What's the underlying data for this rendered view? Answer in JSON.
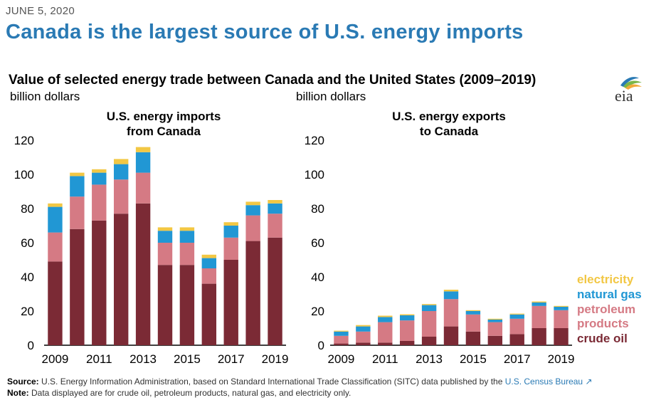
{
  "header": {
    "date": "JUNE 5, 2020",
    "headline": "Canada is the largest source of U.S. energy imports",
    "subtitle": "Value of selected energy trade between Canada and the United States (2009–2019)",
    "logo_text": "eia"
  },
  "colors": {
    "crude_oil": "#7b2a35",
    "petroleum_products": "#d57a84",
    "natural_gas": "#2197d4",
    "electricity": "#f2c744",
    "headline": "#2a7ab4"
  },
  "legend": [
    {
      "key": "electricity",
      "label": "electricity",
      "color": "#f2c744"
    },
    {
      "key": "natural_gas",
      "label": "natural gas",
      "color": "#2197d4"
    },
    {
      "key": "petroleum_products",
      "label": "petroleum products",
      "line1": "petroleum",
      "line2": "products",
      "color": "#d57a84"
    },
    {
      "key": "crude_oil",
      "label": "crude oil",
      "color": "#7b2a35"
    }
  ],
  "chart_data": [
    {
      "type": "bar",
      "stacked": true,
      "title_line1": "U.S. energy imports",
      "title_line2": "from Canada",
      "ylabel": "billion dollars",
      "ylim": [
        0,
        120
      ],
      "yticks": [
        0,
        20,
        40,
        60,
        80,
        100,
        120
      ],
      "categories": [
        "2009",
        "2010",
        "2011",
        "2012",
        "2013",
        "2014",
        "2015",
        "2016",
        "2017",
        "2018",
        "2019"
      ],
      "xtick_labels": [
        "2009",
        "2011",
        "2013",
        "2015",
        "2017",
        "2019"
      ],
      "series": [
        {
          "name": "crude oil",
          "key": "crude_oil",
          "values": [
            49,
            68,
            73,
            77,
            83,
            47,
            47,
            36,
            50,
            61,
            63
          ]
        },
        {
          "name": "petroleum products",
          "key": "petroleum_products",
          "values": [
            17,
            19,
            21,
            20,
            18,
            13,
            13,
            9,
            13,
            15,
            14
          ]
        },
        {
          "name": "natural gas",
          "key": "natural_gas",
          "values": [
            15,
            12,
            7,
            9,
            12,
            7,
            7,
            6,
            7,
            6,
            6
          ]
        },
        {
          "name": "electricity",
          "key": "electricity",
          "values": [
            2,
            2,
            2,
            3,
            3,
            2,
            2,
            2,
            2,
            2,
            2
          ]
        }
      ],
      "legend": "right"
    },
    {
      "type": "bar",
      "stacked": true,
      "title_line1": "U.S. energy exports",
      "title_line2": "to Canada",
      "ylabel": "billion dollars",
      "ylim": [
        0,
        120
      ],
      "yticks": [
        0,
        20,
        40,
        60,
        80,
        100,
        120
      ],
      "categories": [
        "2009",
        "2010",
        "2011",
        "2012",
        "2013",
        "2014",
        "2015",
        "2016",
        "2017",
        "2018",
        "2019"
      ],
      "xtick_labels": [
        "2009",
        "2011",
        "2013",
        "2015",
        "2017",
        "2019"
      ],
      "series": [
        {
          "name": "crude oil",
          "key": "crude_oil",
          "values": [
            1,
            1.5,
            1.5,
            2.5,
            5,
            11,
            8,
            5.5,
            6.5,
            10,
            10
          ]
        },
        {
          "name": "petroleum products",
          "key": "petroleum_products",
          "values": [
            4.5,
            6.5,
            12,
            12,
            15,
            16,
            10,
            8,
            9,
            13,
            10.5
          ]
        },
        {
          "name": "natural gas",
          "key": "natural_gas",
          "values": [
            2.5,
            3,
            3,
            3,
            3.5,
            4.5,
            2,
            1.5,
            2.5,
            2,
            2
          ]
        },
        {
          "name": "electricity",
          "key": "electricity",
          "values": [
            0.5,
            0.8,
            0.8,
            0.6,
            0.6,
            1.0,
            0.5,
            0.5,
            0.5,
            0.6,
            0.5
          ]
        }
      ],
      "legend": "right"
    }
  ],
  "footer": {
    "source_label": "Source:",
    "source_text": " U.S. Energy Information Administration, based on Standard International Trade Classification (SITC) data published by the ",
    "source_link": "U.S. Census Bureau",
    "note_label": "Note:",
    "note_text": " Data displayed are for crude oil, petroleum products, natural gas, and electricity only."
  }
}
